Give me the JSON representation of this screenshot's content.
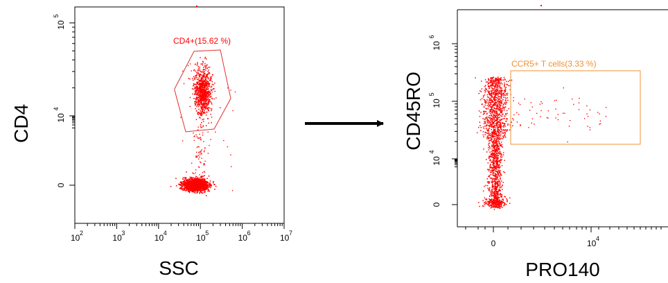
{
  "chart_data": [
    {
      "type": "scatter",
      "title": "",
      "xlabel": "SSC",
      "ylabel": "CD4",
      "x_scale": "log",
      "y_scale": "biexponential",
      "xlim": [
        100,
        10000000
      ],
      "x_ticks": [
        {
          "value": 100,
          "base": "10",
          "exp": "2"
        },
        {
          "value": 1000,
          "base": "10",
          "exp": "3"
        },
        {
          "value": 10000,
          "base": "10",
          "exp": "4"
        },
        {
          "value": 100000,
          "base": "10",
          "exp": "5"
        },
        {
          "value": 1000000,
          "base": "10",
          "exp": "6"
        },
        {
          "value": 10000000,
          "base": "10",
          "exp": "7"
        }
      ],
      "y_ticks": [
        {
          "value": 0,
          "label": "0"
        },
        {
          "value": 10000,
          "base": "10",
          "exp": "4"
        },
        {
          "value": 100000,
          "base": "10",
          "exp": "5"
        }
      ],
      "series": [
        {
          "population": "CD4 negative",
          "x_center": 80000,
          "x_spread_decades": 0.25,
          "y_center": 0,
          "y_spread": "narrow",
          "count": 1500
        },
        {
          "population": "CD4 positive",
          "x_center": 100000,
          "x_spread_decades": 0.15,
          "y_center": 18000,
          "y_spread_decades": 0.15,
          "count": 900
        }
      ],
      "gates": [
        {
          "label": "CD4+(15.62 %)",
          "percent": 15.62,
          "shape": "polygon"
        }
      ],
      "color": "#ff0000",
      "gate_color": "#e03030",
      "grid": false
    },
    {
      "type": "scatter",
      "title": "",
      "xlabel": "PRO140",
      "ylabel": "CD45RO",
      "x_scale": "biexponential",
      "y_scale": "biexponential",
      "x_ticks": [
        {
          "value": 0,
          "label": "0"
        },
        {
          "value": 10000,
          "base": "10",
          "exp": "4"
        }
      ],
      "y_ticks": [
        {
          "value": 0,
          "label": "0"
        },
        {
          "value": 10000,
          "base": "10",
          "exp": "4"
        },
        {
          "value": 100000,
          "base": "10",
          "exp": "5"
        },
        {
          "value": 1000000,
          "base": "10",
          "exp": "6"
        }
      ],
      "series": [
        {
          "population": "PRO140 negative",
          "x_center": 0,
          "y_range": [
            0,
            200000
          ],
          "count": 1700
        },
        {
          "population": "PRO140 positive",
          "x_range": [
            1800,
            11000
          ],
          "y_center": 35000,
          "count": 60
        }
      ],
      "gates": [
        {
          "label": "CCR5+ T cells(3.33 %)",
          "percent": 3.33,
          "shape": "rectangle"
        }
      ],
      "color": "#ff0000",
      "gate_color": "#f09030",
      "grid": false
    }
  ],
  "colors": {
    "arrow": "#000000",
    "axis": "#000000"
  }
}
